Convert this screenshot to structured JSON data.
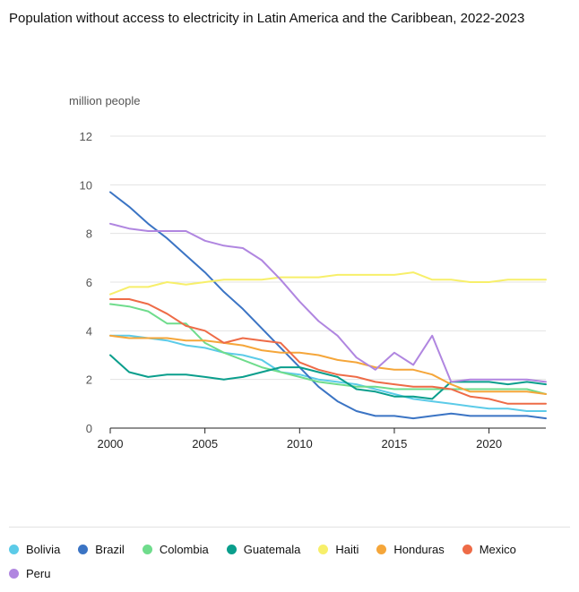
{
  "title": "Population without access to electricity in Latin America and the Caribbean, 2022-2023",
  "chart_data": {
    "type": "line",
    "title": "Population without access to electricity in Latin America and the Caribbean, 2022-2023",
    "ylabel": "million people",
    "xlabel": "",
    "ylim": [
      0,
      12
    ],
    "xlim": [
      2000,
      2023
    ],
    "yticks": [
      "0",
      "2",
      "4",
      "6",
      "8",
      "10",
      "12"
    ],
    "xticks": [
      "2000",
      "2005",
      "2010",
      "2015",
      "2020"
    ],
    "grid": "horizontal",
    "legend_position": "bottom",
    "x": [
      2000,
      2001,
      2002,
      2003,
      2004,
      2005,
      2006,
      2007,
      2008,
      2009,
      2010,
      2011,
      2012,
      2013,
      2014,
      2015,
      2016,
      2017,
      2018,
      2019,
      2020,
      2021,
      2022,
      2023
    ],
    "series": [
      {
        "name": "Bolivia",
        "color": "#5ccbe8",
        "values": [
          3.8,
          3.8,
          3.7,
          3.6,
          3.4,
          3.3,
          3.1,
          3.0,
          2.8,
          2.3,
          2.2,
          2.0,
          1.9,
          1.8,
          1.6,
          1.4,
          1.2,
          1.1,
          1.0,
          0.9,
          0.8,
          0.8,
          0.7,
          0.7
        ]
      },
      {
        "name": "Brazil",
        "color": "#3b74c4",
        "values": [
          9.7,
          9.1,
          8.4,
          7.8,
          7.1,
          6.4,
          5.6,
          4.9,
          4.1,
          3.3,
          2.5,
          1.7,
          1.1,
          0.7,
          0.5,
          0.5,
          0.4,
          0.5,
          0.6,
          0.5,
          0.5,
          0.5,
          0.5,
          0.4
        ]
      },
      {
        "name": "Colombia",
        "color": "#6fdc8c",
        "values": [
          5.1,
          5.0,
          4.8,
          4.3,
          4.3,
          3.5,
          3.1,
          2.8,
          2.5,
          2.3,
          2.1,
          1.9,
          1.8,
          1.7,
          1.7,
          1.6,
          1.6,
          1.6,
          1.6,
          1.6,
          1.6,
          1.6,
          1.6,
          1.4
        ]
      },
      {
        "name": "Guatemala",
        "color": "#0a9e8c",
        "values": [
          3.0,
          2.3,
          2.1,
          2.2,
          2.2,
          2.1,
          2.0,
          2.1,
          2.3,
          2.5,
          2.5,
          2.3,
          2.1,
          1.6,
          1.5,
          1.3,
          1.3,
          1.2,
          1.9,
          1.9,
          1.9,
          1.8,
          1.9,
          1.8
        ]
      },
      {
        "name": "Haiti",
        "color": "#f7ef6a",
        "values": [
          5.5,
          5.8,
          5.8,
          6.0,
          5.9,
          6.0,
          6.1,
          6.1,
          6.1,
          6.2,
          6.2,
          6.2,
          6.3,
          6.3,
          6.3,
          6.3,
          6.4,
          6.1,
          6.1,
          6.0,
          6.0,
          6.1,
          6.1,
          6.1
        ]
      },
      {
        "name": "Honduras",
        "color": "#f5a63a",
        "values": [
          3.8,
          3.7,
          3.7,
          3.7,
          3.6,
          3.6,
          3.5,
          3.4,
          3.2,
          3.1,
          3.1,
          3.0,
          2.8,
          2.7,
          2.5,
          2.4,
          2.4,
          2.2,
          1.8,
          1.5,
          1.5,
          1.5,
          1.5,
          1.4
        ]
      },
      {
        "name": "Mexico",
        "color": "#ee6b47",
        "values": [
          5.3,
          5.3,
          5.1,
          4.7,
          4.2,
          4.0,
          3.5,
          3.7,
          3.6,
          3.5,
          2.7,
          2.4,
          2.2,
          2.1,
          1.9,
          1.8,
          1.7,
          1.7,
          1.6,
          1.3,
          1.2,
          1.0,
          1.0,
          1.0
        ]
      },
      {
        "name": "Peru",
        "color": "#b086e0",
        "values": [
          8.4,
          8.2,
          8.1,
          8.1,
          8.1,
          7.7,
          7.5,
          7.4,
          6.9,
          6.1,
          5.2,
          4.4,
          3.8,
          2.9,
          2.4,
          3.1,
          2.6,
          3.8,
          1.9,
          2.0,
          2.0,
          2.0,
          2.0,
          1.9
        ]
      }
    ]
  }
}
